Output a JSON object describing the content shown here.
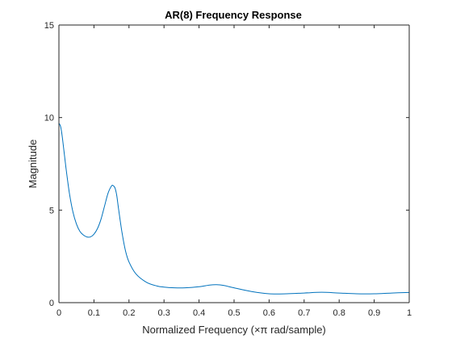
{
  "chart_data": {
    "type": "line",
    "title": "AR(8) Frequency Response",
    "xlabel": "Normalized Frequency (×π rad/sample)",
    "ylabel": "Magnitude",
    "xlim": [
      0,
      1
    ],
    "ylim": [
      0,
      15
    ],
    "xticks": [
      0,
      0.1,
      0.2,
      0.3,
      0.4,
      0.5,
      0.6,
      0.7,
      0.8,
      0.9,
      1
    ],
    "xtick_labels": [
      "0",
      "0.1",
      "0.2",
      "0.3",
      "0.4",
      "0.5",
      "0.6",
      "0.7",
      "0.8",
      "0.9",
      "1"
    ],
    "yticks": [
      0,
      5,
      10,
      15
    ],
    "ytick_labels": [
      "0",
      "5",
      "10",
      "15"
    ],
    "grid": false,
    "line_color": "#0072bd",
    "series": [
      {
        "x": [
          0,
          0.005,
          0.01,
          0.02,
          0.03,
          0.04,
          0.05,
          0.06,
          0.07,
          0.08,
          0.09,
          0.1,
          0.11,
          0.12,
          0.13,
          0.14,
          0.15,
          0.155,
          0.16,
          0.165,
          0.17,
          0.18,
          0.19,
          0.2,
          0.22,
          0.25,
          0.28,
          0.3,
          0.33,
          0.36,
          0.4,
          0.43,
          0.45,
          0.47,
          0.5,
          0.55,
          0.6,
          0.65,
          0.7,
          0.75,
          0.8,
          0.85,
          0.9,
          0.95,
          1
        ],
        "y": [
          9.7,
          9.5,
          8.9,
          7.3,
          5.9,
          4.9,
          4.25,
          3.85,
          3.65,
          3.55,
          3.55,
          3.7,
          4.0,
          4.5,
          5.2,
          5.9,
          6.3,
          6.32,
          6.2,
          5.8,
          5.1,
          3.8,
          2.8,
          2.2,
          1.55,
          1.1,
          0.9,
          0.84,
          0.8,
          0.8,
          0.86,
          0.95,
          0.97,
          0.93,
          0.8,
          0.6,
          0.48,
          0.48,
          0.52,
          0.56,
          0.52,
          0.48,
          0.48,
          0.52,
          0.55
        ]
      }
    ]
  }
}
